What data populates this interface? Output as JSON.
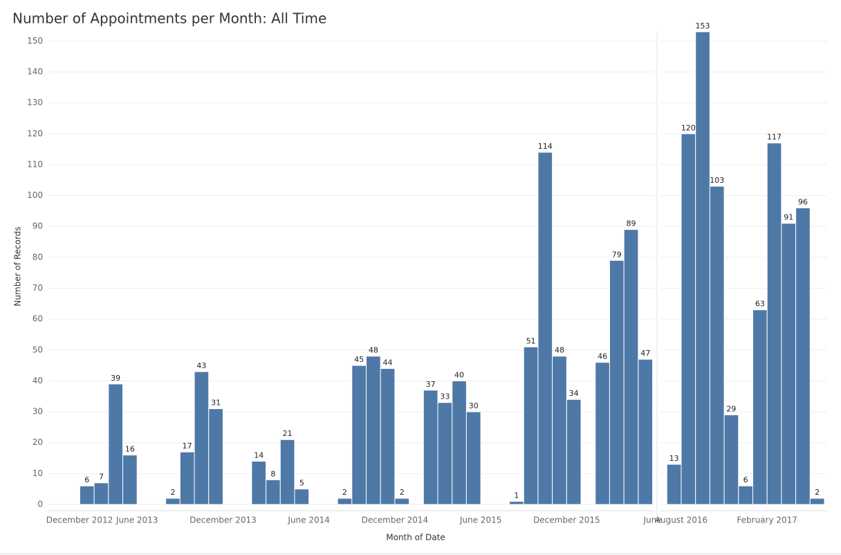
{
  "chart_data": {
    "type": "bar",
    "title": "Number of Appointments per Month: All Time",
    "x_label": "Month of Date",
    "y_label": "Number of Records",
    "categories": [
      "December 2012",
      null,
      null,
      null,
      null,
      null,
      "June 2013",
      null,
      null,
      null,
      null,
      null,
      "December 2013",
      null,
      null,
      null,
      null,
      null,
      "June 2014",
      null,
      null,
      null,
      null,
      null,
      "December 2014",
      null,
      null,
      null,
      null,
      null,
      "June 2015",
      null,
      null,
      null,
      null,
      null,
      "December 2015",
      null,
      null,
      null,
      null,
      null,
      "June",
      null,
      "August 2016",
      null,
      null,
      null,
      null,
      null,
      "February 2017",
      null,
      null,
      null
    ],
    "values": [
      null,
      null,
      6,
      7,
      39,
      16,
      null,
      null,
      2,
      17,
      43,
      31,
      null,
      null,
      14,
      8,
      21,
      5,
      null,
      null,
      2,
      45,
      48,
      44,
      2,
      null,
      37,
      33,
      40,
      30,
      null,
      null,
      1,
      51,
      114,
      48,
      34,
      null,
      46,
      79,
      89,
      47,
      null,
      13,
      120,
      153,
      103,
      29,
      6,
      63,
      117,
      91,
      96,
      2
    ],
    "color": "#4e79a7",
    "ylim": [
      0,
      155
    ],
    "yticks": [
      0,
      10,
      20,
      30,
      40,
      50,
      60,
      70,
      80,
      90,
      100,
      110,
      120,
      130,
      140,
      150
    ],
    "grid": true
  }
}
